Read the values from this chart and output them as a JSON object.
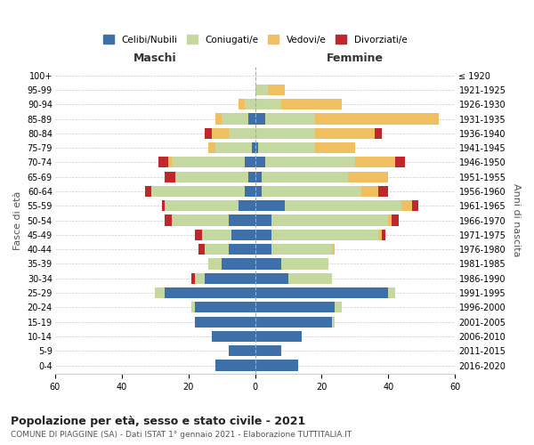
{
  "age_groups": [
    "0-4",
    "5-9",
    "10-14",
    "15-19",
    "20-24",
    "25-29",
    "30-34",
    "35-39",
    "40-44",
    "45-49",
    "50-54",
    "55-59",
    "60-64",
    "65-69",
    "70-74",
    "75-79",
    "80-84",
    "85-89",
    "90-94",
    "95-99",
    "100+"
  ],
  "birth_years": [
    "2016-2020",
    "2011-2015",
    "2006-2010",
    "2001-2005",
    "1996-2000",
    "1991-1995",
    "1986-1990",
    "1981-1985",
    "1976-1980",
    "1971-1975",
    "1966-1970",
    "1961-1965",
    "1956-1960",
    "1951-1955",
    "1946-1950",
    "1941-1945",
    "1936-1940",
    "1931-1935",
    "1926-1930",
    "1921-1925",
    "≤ 1920"
  ],
  "colors": {
    "celibe": "#3d6fa8",
    "coniugato": "#c5d8a0",
    "vedovo": "#f0c060",
    "divorziato": "#c0272d"
  },
  "males": {
    "celibe": [
      12,
      8,
      13,
      18,
      18,
      27,
      15,
      10,
      8,
      7,
      8,
      5,
      3,
      2,
      3,
      1,
      0,
      2,
      0,
      0,
      0
    ],
    "coniugato": [
      0,
      0,
      0,
      0,
      1,
      3,
      3,
      4,
      7,
      9,
      17,
      22,
      28,
      22,
      22,
      11,
      8,
      8,
      3,
      0,
      0
    ],
    "vedovo": [
      0,
      0,
      0,
      0,
      0,
      0,
      0,
      0,
      0,
      0,
      0,
      0,
      0,
      0,
      1,
      2,
      5,
      2,
      2,
      0,
      0
    ],
    "divorziato": [
      0,
      0,
      0,
      0,
      0,
      0,
      1,
      0,
      2,
      2,
      2,
      1,
      2,
      3,
      3,
      0,
      2,
      0,
      0,
      0,
      0
    ]
  },
  "females": {
    "celibe": [
      13,
      8,
      14,
      23,
      24,
      40,
      10,
      8,
      5,
      5,
      5,
      9,
      2,
      2,
      3,
      1,
      0,
      3,
      0,
      0,
      0
    ],
    "coniugato": [
      0,
      0,
      0,
      1,
      2,
      2,
      13,
      14,
      18,
      32,
      35,
      35,
      30,
      26,
      27,
      17,
      18,
      15,
      8,
      4,
      0
    ],
    "vedovo": [
      0,
      0,
      0,
      0,
      0,
      0,
      0,
      0,
      1,
      1,
      1,
      3,
      5,
      12,
      12,
      12,
      18,
      37,
      18,
      5,
      0
    ],
    "divorziato": [
      0,
      0,
      0,
      0,
      0,
      0,
      0,
      0,
      0,
      1,
      2,
      2,
      3,
      0,
      3,
      0,
      2,
      0,
      0,
      0,
      0
    ]
  },
  "xlim": 60,
  "title": "Popolazione per età, sesso e stato civile - 2021",
  "subtitle": "COMUNE DI PIAGGINE (SA) - Dati ISTAT 1° gennaio 2021 - Elaborazione TUTTITALIA.IT",
  "xlabel_left": "Maschi",
  "xlabel_right": "Femmine",
  "ylabel": "Fasce di età",
  "ylabel_right": "Anni di nascita",
  "legend_labels": [
    "Celibi/Nubili",
    "Coniugati/e",
    "Vedovi/e",
    "Divorziati/e"
  ],
  "background_color": "#ffffff"
}
